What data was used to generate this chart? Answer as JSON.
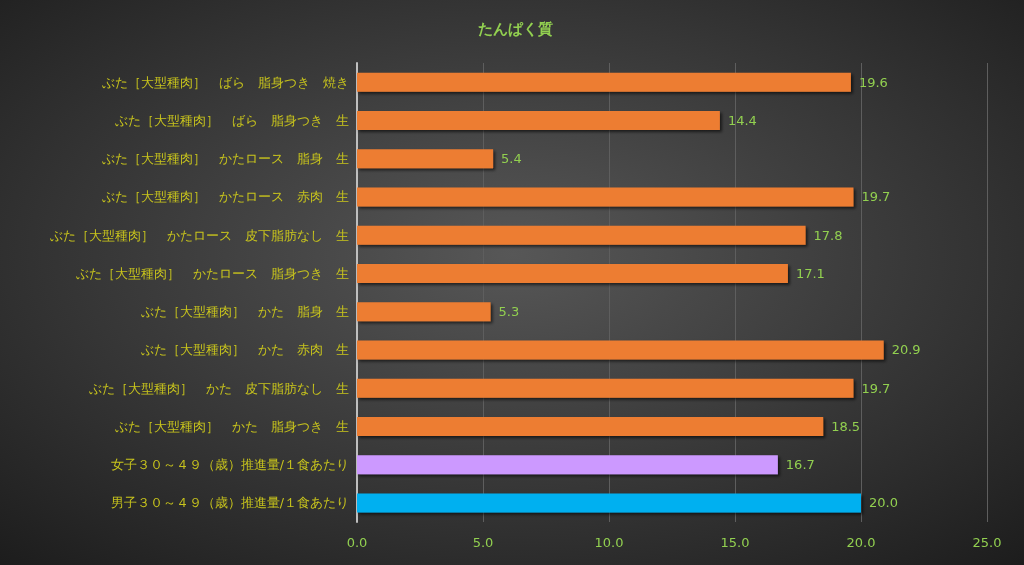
{
  "chart_data": {
    "type": "bar",
    "orientation": "horizontal",
    "title": "たんぱく質",
    "categories": [
      "ぶた［大型種肉］　ばら　脂身つき　焼き",
      "ぶた［大型種肉］　ばら　脂身つき　生",
      "ぶた［大型種肉］　かたロース　脂身　生",
      "ぶた［大型種肉］　かたロース　赤肉　生",
      "ぶた［大型種肉］　かたロース　皮下脂肪なし　生",
      "ぶた［大型種肉］　かたロース　脂身つき　生",
      "ぶた［大型種肉］　かた　脂身　生",
      "ぶた［大型種肉］　かた　赤肉　生",
      "ぶた［大型種肉］　かた　皮下脂肪なし　生",
      "ぶた［大型種肉］　かた　脂身つき　生",
      "女子３０～４９（歳）推進量/１食あたり",
      "男子３０～４９（歳）推進量/１食あたり"
    ],
    "values": [
      19.6,
      14.4,
      5.4,
      19.7,
      17.8,
      17.1,
      5.3,
      20.9,
      19.7,
      18.5,
      16.7,
      20.0
    ],
    "colors": [
      "#ed7d31",
      "#ed7d31",
      "#ed7d31",
      "#ed7d31",
      "#ed7d31",
      "#ed7d31",
      "#ed7d31",
      "#ed7d31",
      "#ed7d31",
      "#ed7d31",
      "#cc99ff",
      "#00b0f0"
    ],
    "value_labels": [
      "19.6",
      "14.4",
      "5.4",
      "19.7",
      "17.8",
      "17.1",
      "5.3",
      "20.9",
      "19.7",
      "18.5",
      "16.7",
      "20.0"
    ],
    "xlim": [
      0,
      25
    ],
    "xticks": [
      {
        "value": 0,
        "label": "0.0"
      },
      {
        "value": 5,
        "label": "5.0"
      },
      {
        "value": 10,
        "label": "10.0"
      },
      {
        "value": 15,
        "label": "15.0"
      },
      {
        "value": 20,
        "label": "20.0"
      },
      {
        "value": 25,
        "label": "25.0"
      }
    ],
    "grid": "x"
  }
}
